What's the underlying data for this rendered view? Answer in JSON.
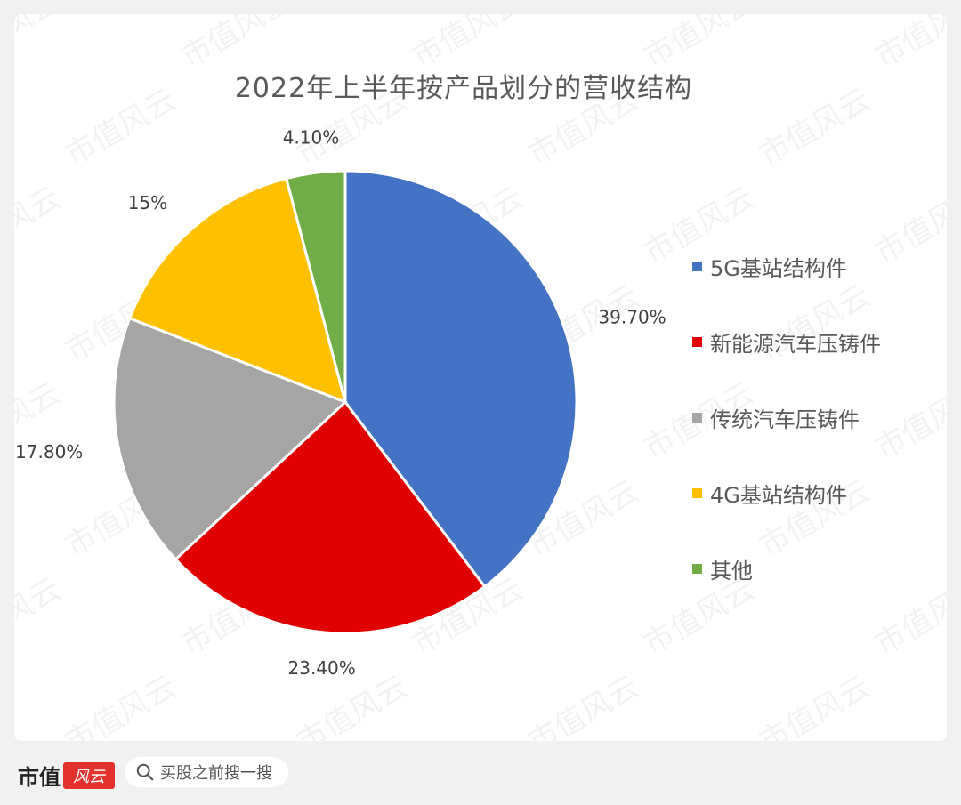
{
  "chart_data": {
    "type": "pie",
    "title": "2022年上半年按产品划分的营收结构",
    "legend_position": "right",
    "slices": [
      {
        "name": "5G基站结构件",
        "value": 39.7,
        "label": "39.70%",
        "color": "#4472C4"
      },
      {
        "name": "新能源汽车压铸件",
        "value": 23.4,
        "label": "23.40%",
        "color": "#E00000"
      },
      {
        "name": "传统汽车压铸件",
        "value": 17.8,
        "label": "17.80%",
        "color": "#A5A5A5"
      },
      {
        "name": "4G基站结构件",
        "value": 15,
        "label": "15%",
        "color": "#FFC000"
      },
      {
        "name": "其他",
        "value": 4.1,
        "label": "4.10%",
        "color": "#70AD47"
      }
    ]
  },
  "watermark": "市值风云",
  "footer": {
    "brand_name": "市值",
    "brand_logo_text": "风云",
    "search_text": "买股之前搜一搜",
    "search_icon": "search-icon"
  }
}
